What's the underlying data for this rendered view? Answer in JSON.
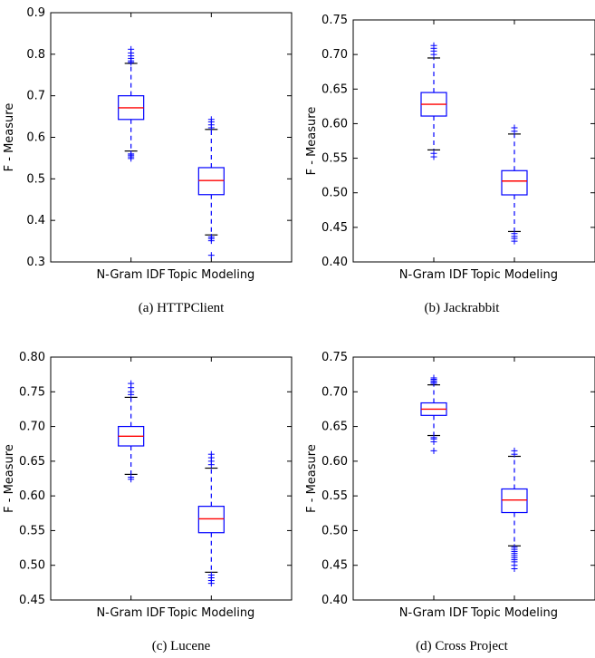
{
  "chart_data": [
    {
      "type": "box",
      "caption": "(a)  HTTPClient",
      "ylabel": "F - Measure",
      "categories": [
        "N-Gram IDF",
        "Topic Modeling"
      ],
      "ylim": [
        0.3,
        0.9
      ],
      "yticks": [
        0.3,
        0.4,
        0.5,
        0.6,
        0.7,
        0.8,
        0.9
      ],
      "ytick_labels": [
        "0.3",
        "0.4",
        "0.5",
        "0.6",
        "0.7",
        "0.8",
        "0.9"
      ],
      "boxes": [
        {
          "category": "N-Gram IDF",
          "whisker_low": 0.567,
          "q1": 0.643,
          "median": 0.671,
          "q3": 0.7,
          "whisker_high": 0.778,
          "outliers": [
            0.549,
            0.553,
            0.557,
            0.56,
            0.78,
            0.784,
            0.79,
            0.796,
            0.803,
            0.812
          ]
        },
        {
          "category": "Topic Modeling",
          "whisker_low": 0.365,
          "q1": 0.462,
          "median": 0.496,
          "q3": 0.527,
          "whisker_high": 0.619,
          "outliers": [
            0.316,
            0.351,
            0.356,
            0.36,
            0.623,
            0.63,
            0.637,
            0.643
          ]
        }
      ],
      "grid": false
    },
    {
      "type": "box",
      "caption": "(b)  Jackrabbit",
      "ylabel": "F - Measure",
      "categories": [
        "N-Gram IDF",
        "Topic Modeling"
      ],
      "ylim": [
        0.4,
        0.75
      ],
      "yticks": [
        0.4,
        0.45,
        0.5,
        0.55,
        0.6,
        0.65,
        0.7,
        0.75
      ],
      "ytick_labels": [
        "0.40",
        "0.45",
        "0.50",
        "0.55",
        "0.60",
        "0.65",
        "0.70",
        "0.75"
      ],
      "boxes": [
        {
          "category": "N-Gram IDF",
          "whisker_low": 0.562,
          "q1": 0.611,
          "median": 0.628,
          "q3": 0.645,
          "whisker_high": 0.695,
          "outliers": [
            0.552,
            0.557,
            0.7,
            0.705,
            0.709,
            0.713
          ]
        },
        {
          "category": "Topic Modeling",
          "whisker_low": 0.444,
          "q1": 0.497,
          "median": 0.517,
          "q3": 0.532,
          "whisker_high": 0.585,
          "outliers": [
            0.43,
            0.434,
            0.437,
            0.441,
            0.589,
            0.594
          ]
        }
      ],
      "grid": false
    },
    {
      "type": "box",
      "caption": "(c)  Lucene",
      "ylabel": "F - Measure",
      "categories": [
        "N-Gram IDF",
        "Topic Modeling"
      ],
      "ylim": [
        0.45,
        0.8
      ],
      "yticks": [
        0.45,
        0.5,
        0.55,
        0.6,
        0.65,
        0.7,
        0.75,
        0.8
      ],
      "ytick_labels": [
        "0.45",
        "0.50",
        "0.55",
        "0.60",
        "0.65",
        "0.70",
        "0.75",
        "0.80"
      ],
      "boxes": [
        {
          "category": "N-Gram IDF",
          "whisker_low": 0.631,
          "q1": 0.672,
          "median": 0.686,
          "q3": 0.7,
          "whisker_high": 0.742,
          "outliers": [
            0.624,
            0.627,
            0.746,
            0.75,
            0.756,
            0.762
          ]
        },
        {
          "category": "Topic Modeling",
          "whisker_low": 0.49,
          "q1": 0.547,
          "median": 0.567,
          "q3": 0.585,
          "whisker_high": 0.64,
          "outliers": [
            0.474,
            0.478,
            0.482,
            0.486,
            0.645,
            0.65,
            0.655,
            0.66
          ]
        }
      ],
      "grid": false
    },
    {
      "type": "box",
      "caption": "(d)  Cross Project",
      "ylabel": "F - Measure",
      "categories": [
        "N-Gram IDF",
        "Topic Modeling"
      ],
      "ylim": [
        0.4,
        0.75
      ],
      "yticks": [
        0.4,
        0.45,
        0.5,
        0.55,
        0.6,
        0.65,
        0.7,
        0.75
      ],
      "ytick_labels": [
        "0.40",
        "0.45",
        "0.50",
        "0.55",
        "0.60",
        "0.65",
        "0.70",
        "0.75"
      ],
      "boxes": [
        {
          "category": "N-Gram IDF",
          "whisker_low": 0.637,
          "q1": 0.666,
          "median": 0.675,
          "q3": 0.684,
          "whisker_high": 0.71,
          "outliers": [
            0.615,
            0.628,
            0.632,
            0.634,
            0.712,
            0.714,
            0.716,
            0.718,
            0.72
          ]
        },
        {
          "category": "Topic Modeling",
          "whisker_low": 0.478,
          "q1": 0.526,
          "median": 0.544,
          "q3": 0.56,
          "whisker_high": 0.607,
          "outliers": [
            0.445,
            0.45,
            0.455,
            0.458,
            0.461,
            0.464,
            0.467,
            0.47,
            0.473,
            0.476,
            0.61,
            0.615
          ]
        }
      ],
      "grid": false
    }
  ],
  "colors": {
    "box": "#0000ff",
    "median": "#ff0000",
    "cap": "#000000",
    "axes": "#000000",
    "text": "#000000"
  }
}
